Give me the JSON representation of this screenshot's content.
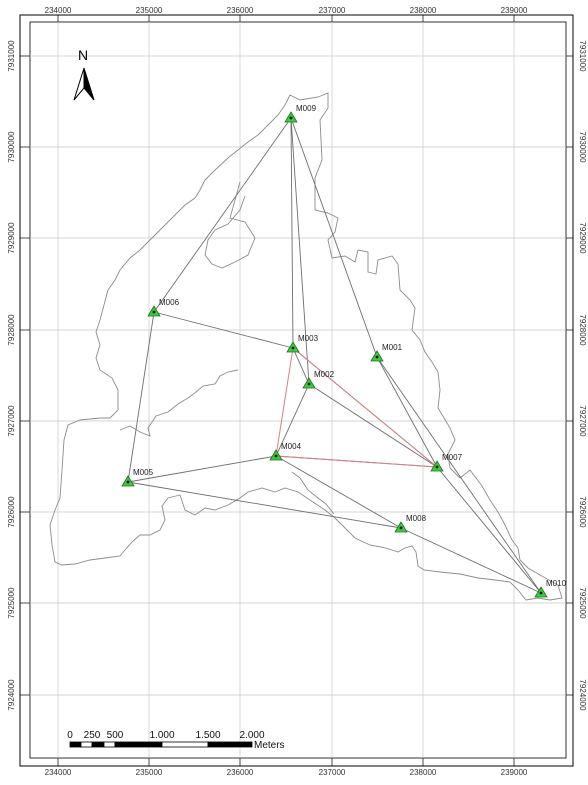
{
  "map": {
    "x_ticks": [
      "234000",
      "235000",
      "236000",
      "237000",
      "238000",
      "239000"
    ],
    "y_ticks": [
      "7931000",
      "7930000",
      "7929000",
      "7928000",
      "7927000",
      "7926000",
      "7925000",
      "7924000"
    ],
    "north_label": "N",
    "colors": {
      "boundary": "#8c8c8c",
      "network_line": "#6e6e6e",
      "highlight_line": "#d98080",
      "station_fill": "#3dcc3d",
      "station_stroke": "#1f6e1f",
      "grid": "#c8c8c8",
      "frame": "#000000"
    },
    "stations": [
      {
        "id": "M009",
        "label": "M009"
      },
      {
        "id": "M006",
        "label": "M006"
      },
      {
        "id": "M003",
        "label": "M003"
      },
      {
        "id": "M001",
        "label": "M001"
      },
      {
        "id": "M002",
        "label": "M002"
      },
      {
        "id": "M004",
        "label": "M004"
      },
      {
        "id": "M007",
        "label": "M007"
      },
      {
        "id": "M005",
        "label": "M005"
      },
      {
        "id": "M008",
        "label": "M008"
      },
      {
        "id": "M010",
        "label": "M010"
      }
    ],
    "scale_bar": {
      "labels": [
        "0",
        "250",
        "500",
        "1.000",
        "1.500",
        "2.000"
      ],
      "unit": "Meters"
    }
  }
}
